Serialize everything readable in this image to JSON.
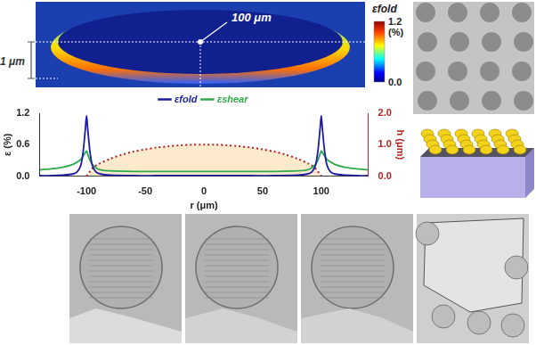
{
  "chart_data": {
    "type": "line",
    "x_label": "r (μm)",
    "y_label": "ε (%)",
    "y2_label": "h (μm)",
    "xlim": [
      -140,
      140
    ],
    "xticks": [
      -100,
      -50,
      0,
      50,
      100
    ],
    "ylim": [
      0,
      1.2
    ],
    "yticks": [
      {
        "value": 0,
        "label": "0.0"
      },
      0.6,
      1.2
    ],
    "y2lim": [
      0,
      2
    ],
    "y2ticks": [
      {
        "value": 0,
        "label": "0.0"
      },
      {
        "value": 1,
        "label": "1.0"
      },
      {
        "value": 2,
        "label": "2.0"
      }
    ],
    "grid": false,
    "legend": "top",
    "series": [
      {
        "name": "εfold",
        "color": "#1a1aa6",
        "x": [
          -140,
          -130,
          -120,
          -112,
          -108,
          -105,
          -103,
          -101,
          -100,
          -99,
          -97,
          -95,
          -92,
          -88,
          -80,
          -60,
          -40,
          -20,
          0,
          20,
          40,
          60,
          80,
          88,
          92,
          95,
          97,
          99,
          100,
          101,
          103,
          105,
          108,
          112,
          120,
          130,
          140
        ],
        "values": [
          0.01,
          0.01,
          0.02,
          0.04,
          0.08,
          0.2,
          0.45,
          0.9,
          1.15,
          0.9,
          0.45,
          0.2,
          0.08,
          0.04,
          0.02,
          0.01,
          0.01,
          0.01,
          0.01,
          0.01,
          0.01,
          0.01,
          0.02,
          0.04,
          0.08,
          0.2,
          0.45,
          0.9,
          1.15,
          0.9,
          0.45,
          0.2,
          0.08,
          0.04,
          0.02,
          0.01,
          0.01
        ]
      },
      {
        "name": "εshear",
        "color": "#2eaa4a",
        "x": [
          -140,
          -130,
          -120,
          -112,
          -108,
          -105,
          -103,
          -101,
          -100,
          -99,
          -97,
          -95,
          -92,
          -88,
          -80,
          -60,
          -40,
          -20,
          0,
          20,
          40,
          60,
          80,
          88,
          92,
          95,
          97,
          99,
          100,
          101,
          103,
          105,
          108,
          112,
          120,
          130,
          140
        ],
        "values": [
          0.12,
          0.14,
          0.17,
          0.22,
          0.27,
          0.32,
          0.38,
          0.45,
          0.48,
          0.42,
          0.3,
          0.22,
          0.16,
          0.12,
          0.1,
          0.09,
          0.09,
          0.09,
          0.09,
          0.09,
          0.09,
          0.09,
          0.1,
          0.12,
          0.16,
          0.22,
          0.3,
          0.42,
          0.48,
          0.45,
          0.38,
          0.32,
          0.27,
          0.22,
          0.17,
          0.14,
          0.12
        ]
      },
      {
        "color": "#b22222",
        "line_style": "dotted",
        "axis": "y2",
        "x": [
          -100,
          -95,
          -90,
          -80,
          -70,
          -60,
          -50,
          -40,
          -30,
          -20,
          -10,
          0,
          10,
          20,
          30,
          40,
          50,
          60,
          70,
          80,
          90,
          95,
          100
        ],
        "values": [
          0,
          0.25,
          0.38,
          0.55,
          0.68,
          0.78,
          0.85,
          0.91,
          0.95,
          0.98,
          1.0,
          1.0,
          1.0,
          0.98,
          0.95,
          0.91,
          0.85,
          0.78,
          0.68,
          0.55,
          0.38,
          0.25,
          0
        ]
      }
    ]
  },
  "heatmap": {
    "title": "εfold",
    "colorbar_unit": "(%)",
    "colorbar_range": [
      0,
      1.2
    ],
    "colorbar_ticks": [
      {
        "value": 0,
        "label": "0.0"
      },
      1.2
    ]
  },
  "annotations": {
    "height_scale": "1 μm",
    "radius": "100 μm"
  }
}
